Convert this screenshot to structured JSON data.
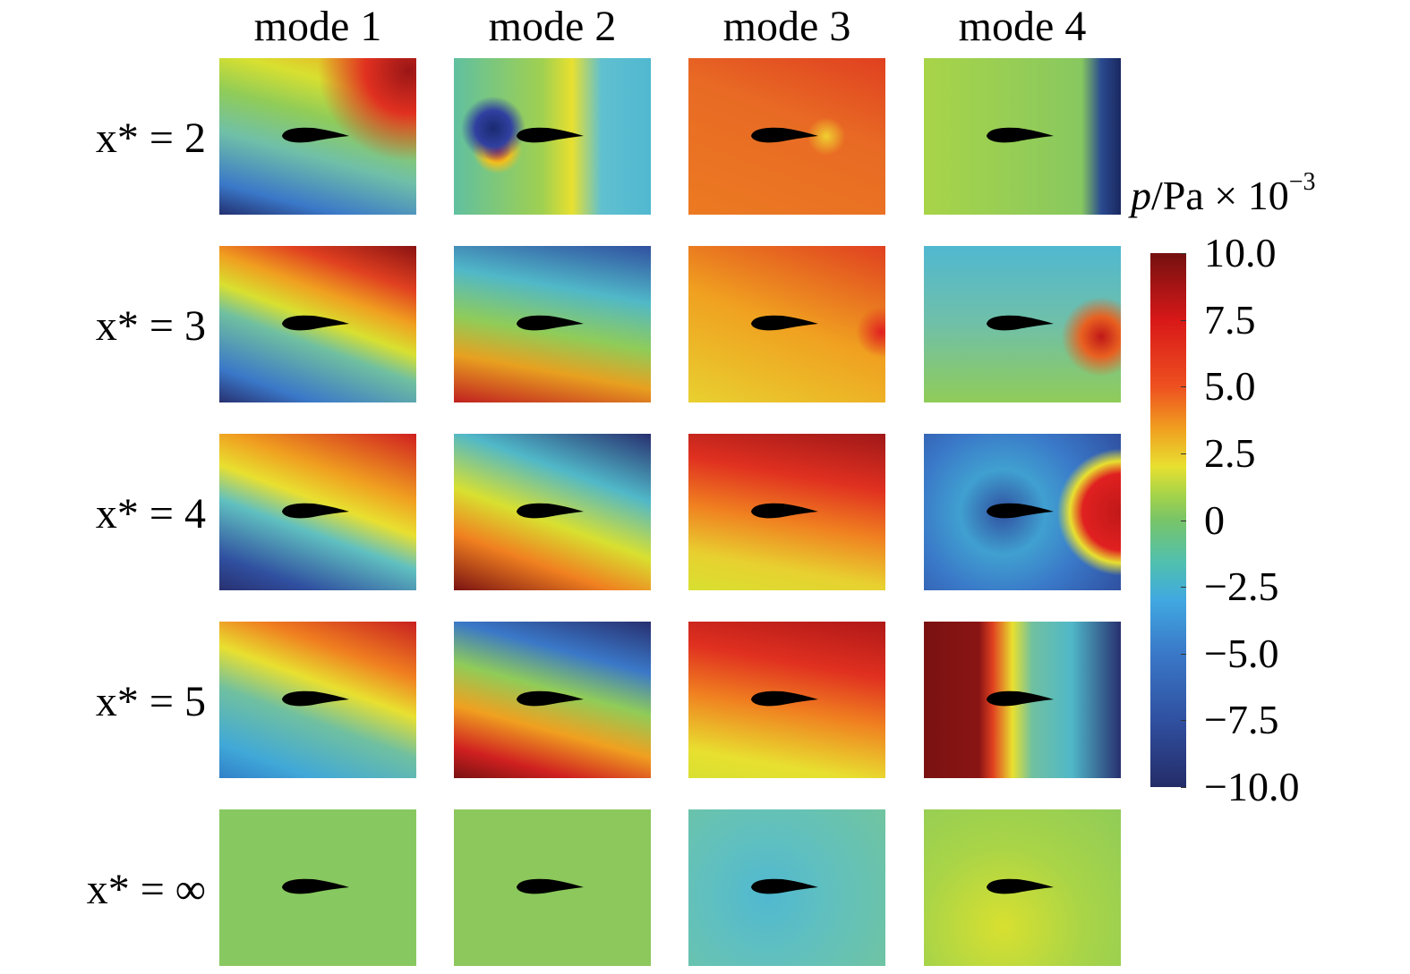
{
  "column_titles": [
    "mode 1",
    "mode 2",
    "mode 3",
    "mode 4"
  ],
  "row_labels": [
    "x* = 2",
    "x* = 3",
    "x* = 4",
    "x* = 5",
    "x* = ∞"
  ],
  "colorbar": {
    "title": "p/Pa × 10",
    "title_exponent": "−3",
    "clim": [
      -10,
      10
    ],
    "ticks": [
      {
        "value": 10,
        "label": "10.0"
      },
      {
        "value": 7.5,
        "label": "7.5"
      },
      {
        "value": 5,
        "label": "5.0"
      },
      {
        "value": 2.5,
        "label": "2.5"
      },
      0,
      {
        "value": -2.5,
        "label": "−2.5"
      },
      {
        "value": -5,
        "label": "−5.0"
      },
      {
        "value": -7.5,
        "label": "−7.5"
      },
      {
        "value": -10,
        "label": "−10.0"
      }
    ]
  }
}
